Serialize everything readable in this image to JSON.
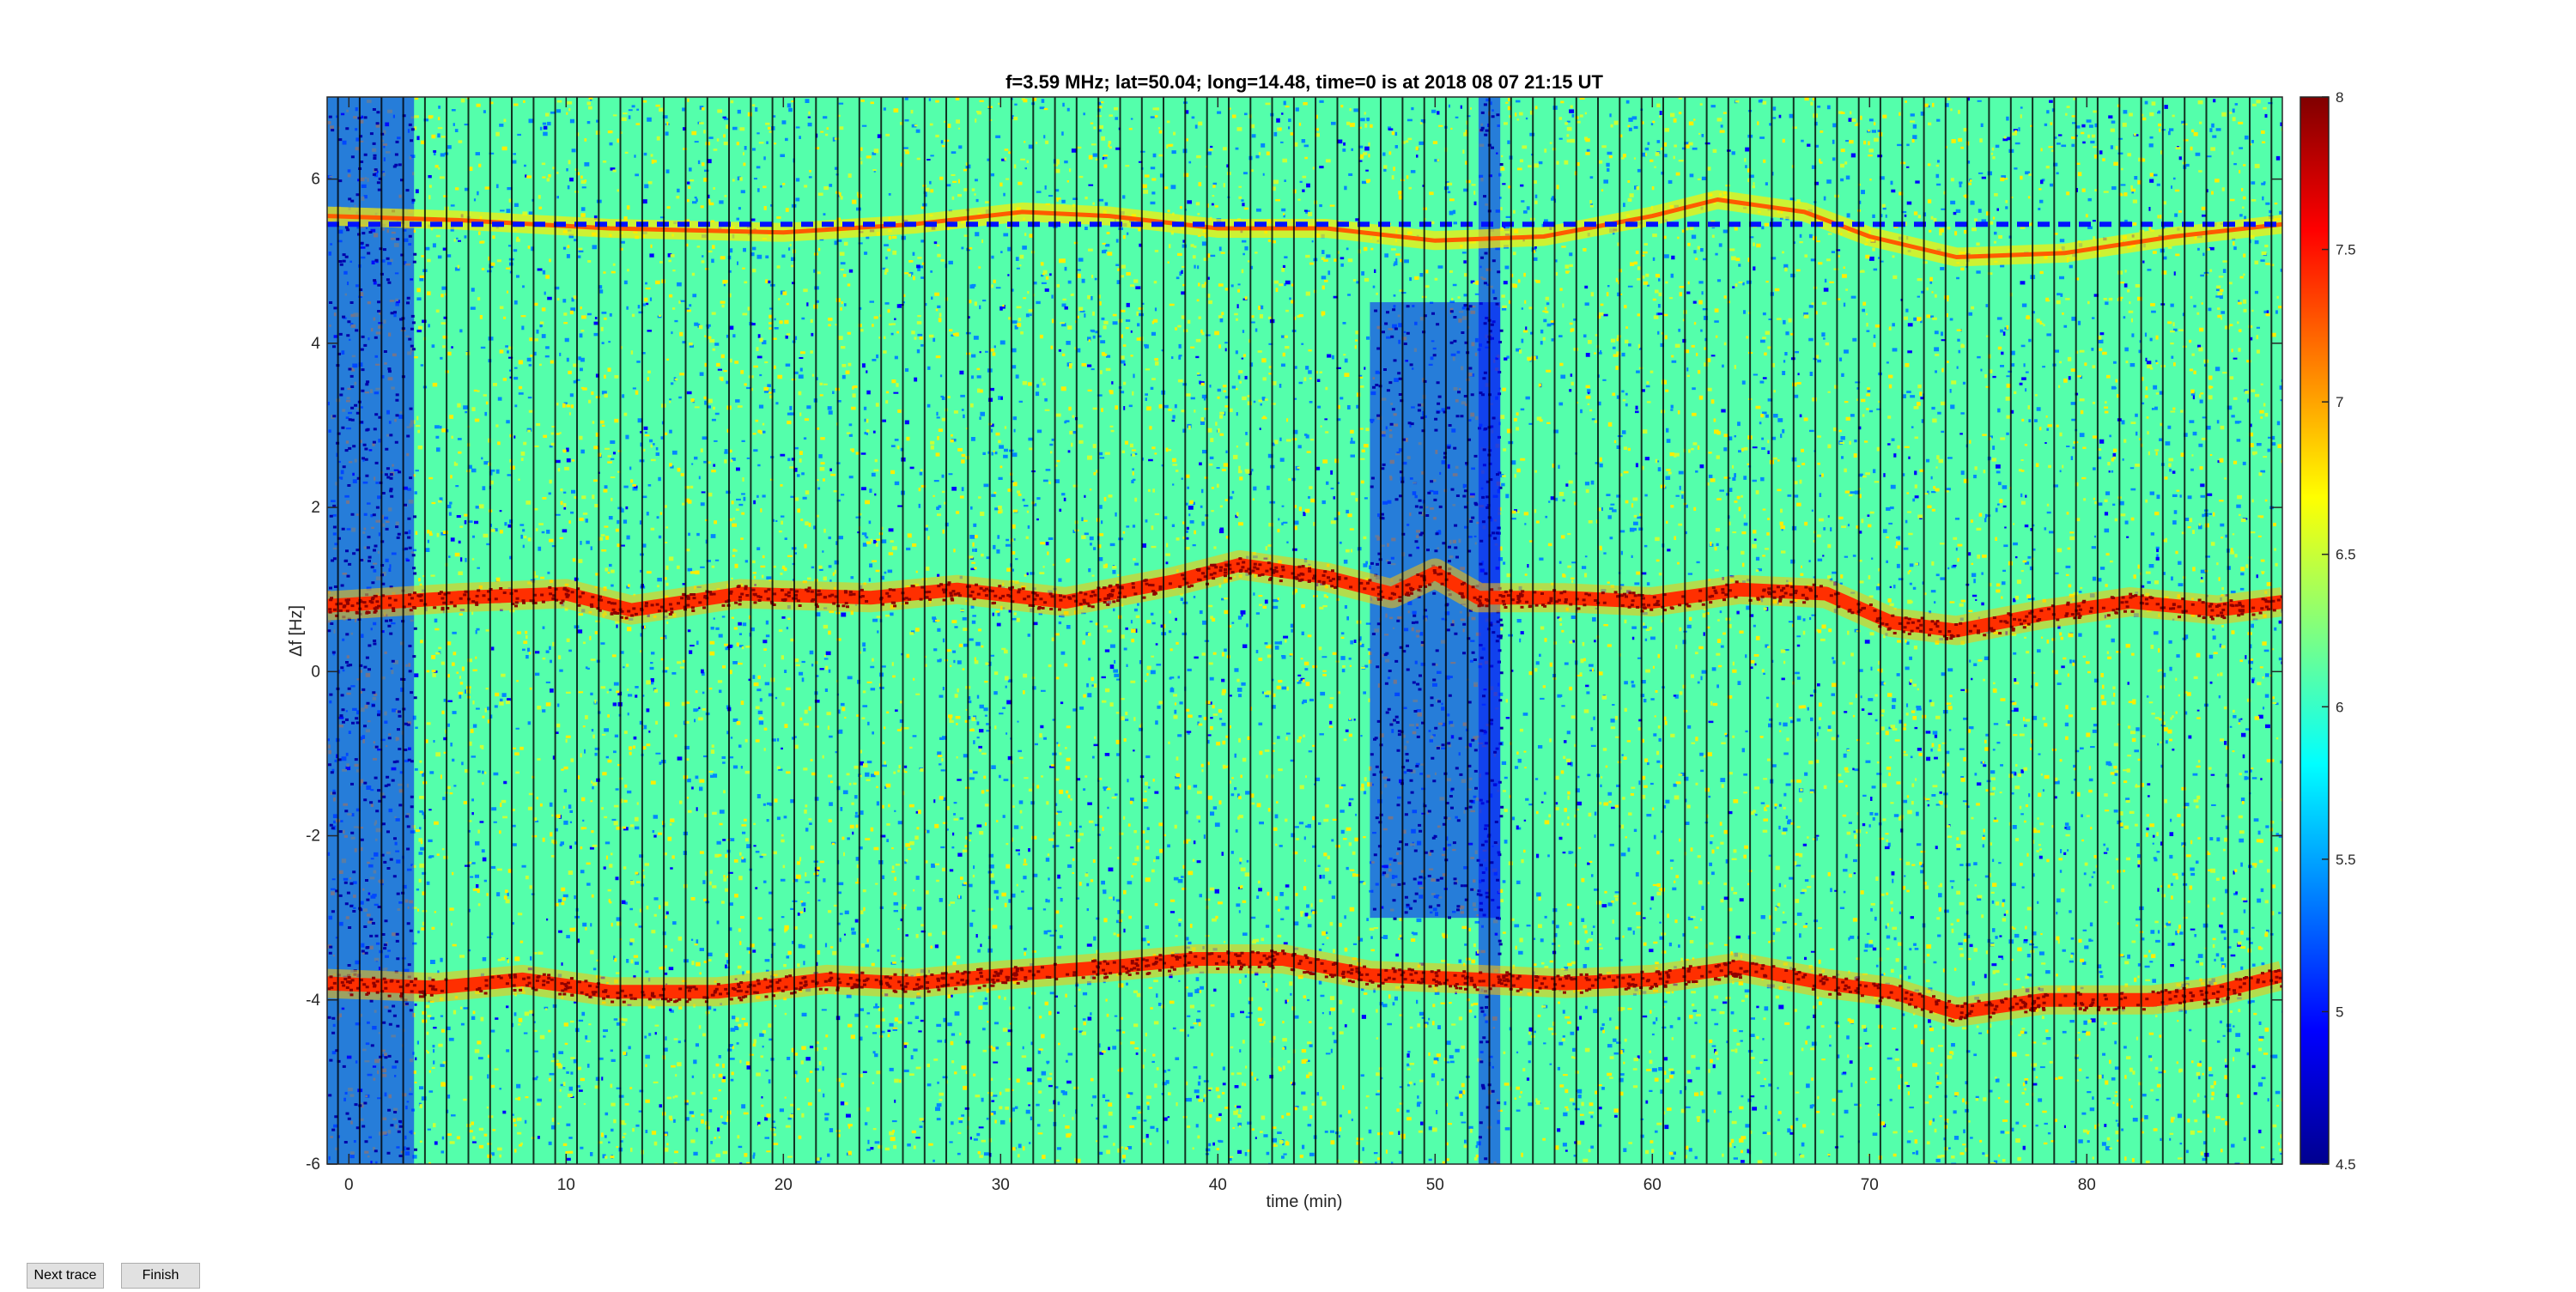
{
  "chart_data": {
    "type": "heatmap",
    "title": "f=3.59 MHz;  lat=50.04; long=14.48, time=0 is at 2018 08 07 21:15 UT",
    "xlabel": "time (min)",
    "ylabel": "Δf [Hz]",
    "xlim": [
      -1,
      89
    ],
    "ylim": [
      -6,
      7
    ],
    "xticks": [
      0,
      10,
      20,
      30,
      40,
      50,
      60,
      70,
      80
    ],
    "xtick_labels": [
      "0",
      "10",
      "20",
      "30",
      "40",
      "50",
      "60",
      "70",
      "80"
    ],
    "yticks": [
      -6,
      -4,
      -2,
      0,
      2,
      4,
      6
    ],
    "ytick_labels": [
      "-6",
      "-4",
      "-2",
      "0",
      "2",
      "4",
      "6"
    ],
    "colorbar": {
      "range": [
        4.5,
        8
      ],
      "ticks": [
        4.5,
        5,
        5.5,
        6,
        6.5,
        7,
        7.5,
        8
      ],
      "tick_labels": [
        "4.5",
        "5",
        "5.5",
        "6",
        "6.5",
        "7",
        "7.5",
        "8"
      ],
      "colormap": "jet"
    },
    "background_level": 6.1,
    "vertical_separators_every_min": 1,
    "traces": [
      {
        "level": 7.8,
        "points": [
          [
            -1,
            0.8
          ],
          [
            5,
            0.9
          ],
          [
            10,
            0.95
          ],
          [
            13,
            0.75
          ],
          [
            18,
            0.95
          ],
          [
            24,
            0.9
          ],
          [
            28,
            1.0
          ],
          [
            33,
            0.85
          ],
          [
            38,
            1.1
          ],
          [
            41,
            1.3
          ],
          [
            45,
            1.15
          ],
          [
            48,
            0.95
          ],
          [
            50,
            1.2
          ],
          [
            52,
            0.9
          ],
          [
            56,
            0.9
          ],
          [
            60,
            0.85
          ],
          [
            64,
            1.0
          ],
          [
            68,
            0.95
          ],
          [
            71,
            0.6
          ],
          [
            74,
            0.5
          ],
          [
            78,
            0.7
          ],
          [
            82,
            0.85
          ],
          [
            86,
            0.75
          ],
          [
            89,
            0.85
          ]
        ]
      },
      {
        "level": 7.8,
        "points": [
          [
            -1,
            -3.8
          ],
          [
            4,
            -3.85
          ],
          [
            8,
            -3.75
          ],
          [
            12,
            -3.9
          ],
          [
            17,
            -3.9
          ],
          [
            22,
            -3.75
          ],
          [
            26,
            -3.8
          ],
          [
            30,
            -3.7
          ],
          [
            35,
            -3.6
          ],
          [
            39,
            -3.5
          ],
          [
            43,
            -3.5
          ],
          [
            47,
            -3.7
          ],
          [
            52,
            -3.75
          ],
          [
            56,
            -3.8
          ],
          [
            60,
            -3.75
          ],
          [
            64,
            -3.6
          ],
          [
            68,
            -3.8
          ],
          [
            71,
            -3.9
          ],
          [
            74,
            -4.15
          ],
          [
            78,
            -4.0
          ],
          [
            83,
            -4.0
          ],
          [
            86,
            -3.9
          ],
          [
            89,
            -3.7
          ]
        ]
      },
      {
        "level": 7.0,
        "points": [
          [
            -1,
            5.55
          ],
          [
            5,
            5.5
          ],
          [
            12,
            5.4
          ],
          [
            20,
            5.35
          ],
          [
            26,
            5.45
          ],
          [
            31,
            5.6
          ],
          [
            35,
            5.55
          ],
          [
            40,
            5.4
          ],
          [
            45,
            5.4
          ],
          [
            50,
            5.25
          ],
          [
            55,
            5.3
          ],
          [
            60,
            5.55
          ],
          [
            63,
            5.75
          ],
          [
            67,
            5.6
          ],
          [
            70,
            5.3
          ],
          [
            74,
            5.05
          ],
          [
            79,
            5.1
          ],
          [
            84,
            5.3
          ],
          [
            89,
            5.45
          ]
        ]
      },
      {
        "level": 5.0,
        "points": [
          [
            -1,
            5.45
          ],
          [
            89,
            5.45
          ]
        ]
      }
    ],
    "low_zones": [
      {
        "x": [
          -1,
          3
        ],
        "y": [
          -6,
          7
        ]
      },
      {
        "x": [
          47,
          53
        ],
        "y": [
          -3,
          4.5
        ]
      },
      {
        "x": [
          52,
          53
        ],
        "y": [
          -6,
          7
        ]
      }
    ]
  },
  "controls": {
    "next_label": "Next trace",
    "finish_label": "Finish"
  }
}
